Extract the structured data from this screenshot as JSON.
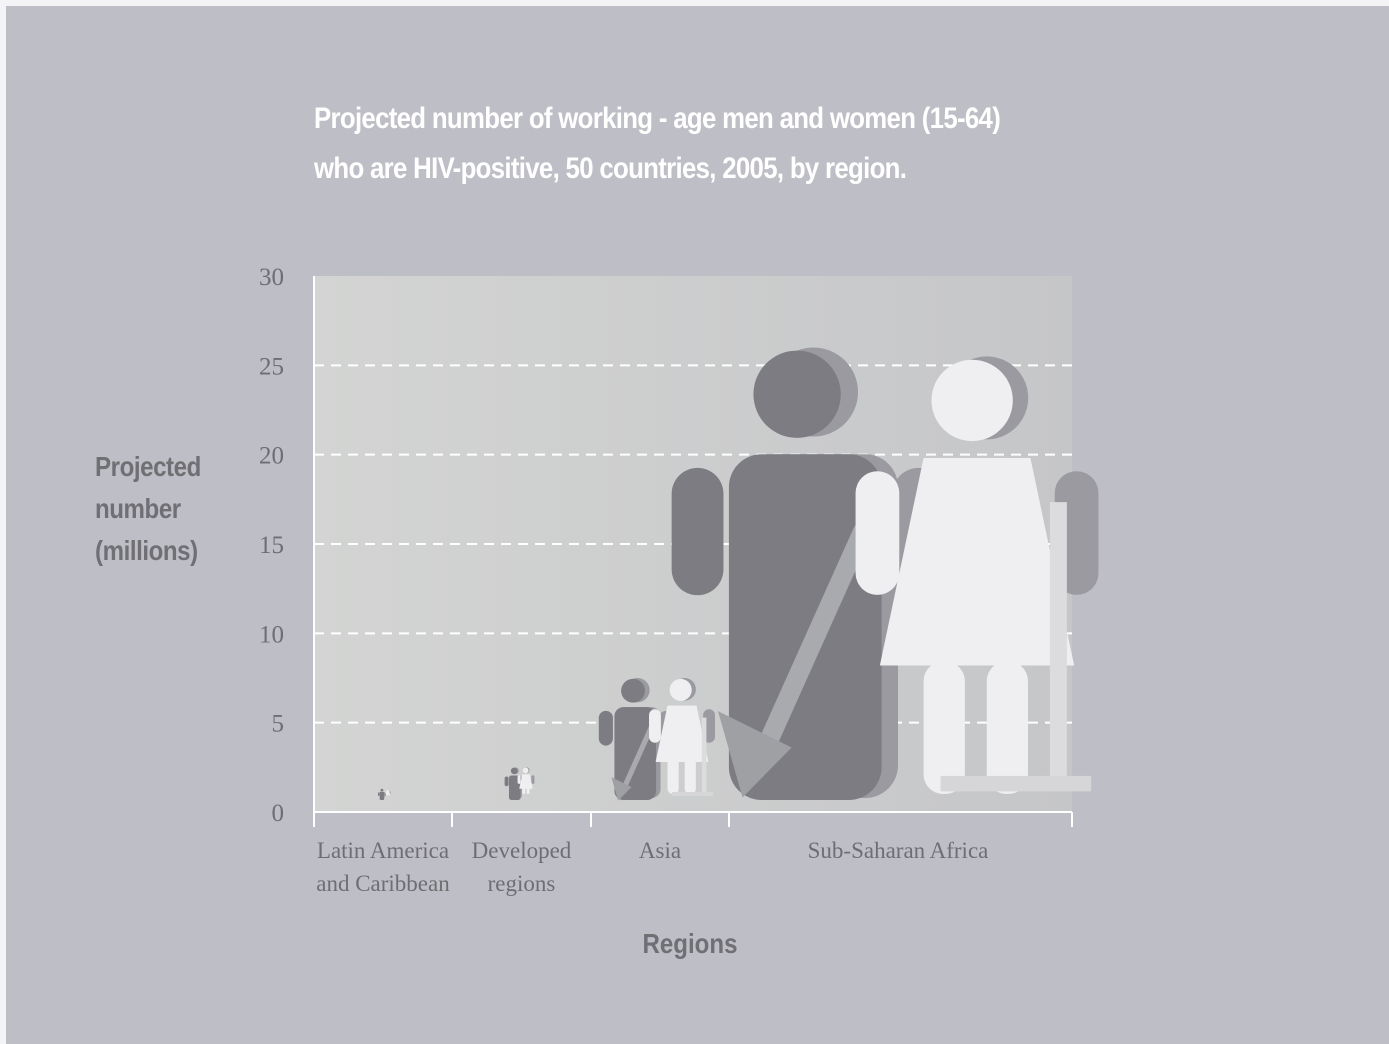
{
  "chart_data": {
    "type": "bar",
    "title_lines": [
      "Projected number of working - age men and women (15-64)",
      "who are HIV-positive, 50 countries, 2005, by region."
    ],
    "ylabel_lines": [
      "Projected",
      "number",
      "(millions)"
    ],
    "xlabel": "Regions",
    "ylim": [
      0,
      30
    ],
    "yticks": [
      "0",
      "5",
      "10",
      "15",
      "20",
      "25",
      "30"
    ],
    "grid": true,
    "categories": [
      [
        "Latin America",
        "and Caribbean"
      ],
      [
        "Developed",
        "regions"
      ],
      [
        "Asia"
      ],
      [
        "Sub-Saharan Africa"
      ]
    ],
    "series": [
      {
        "values": [
          1.3,
          2.5,
          7.5,
          26
        ],
        "color": "#7c7c82"
      },
      {
        "values": [
          1.3,
          2.5,
          7.5,
          25.5
        ],
        "color": "#efeef1"
      }
    ],
    "colors": {
      "background": "#bebec6",
      "plot": "#cdcfcd",
      "men": "#7c7c82",
      "women": "#efeef1",
      "grid": "#ffffff"
    }
  }
}
